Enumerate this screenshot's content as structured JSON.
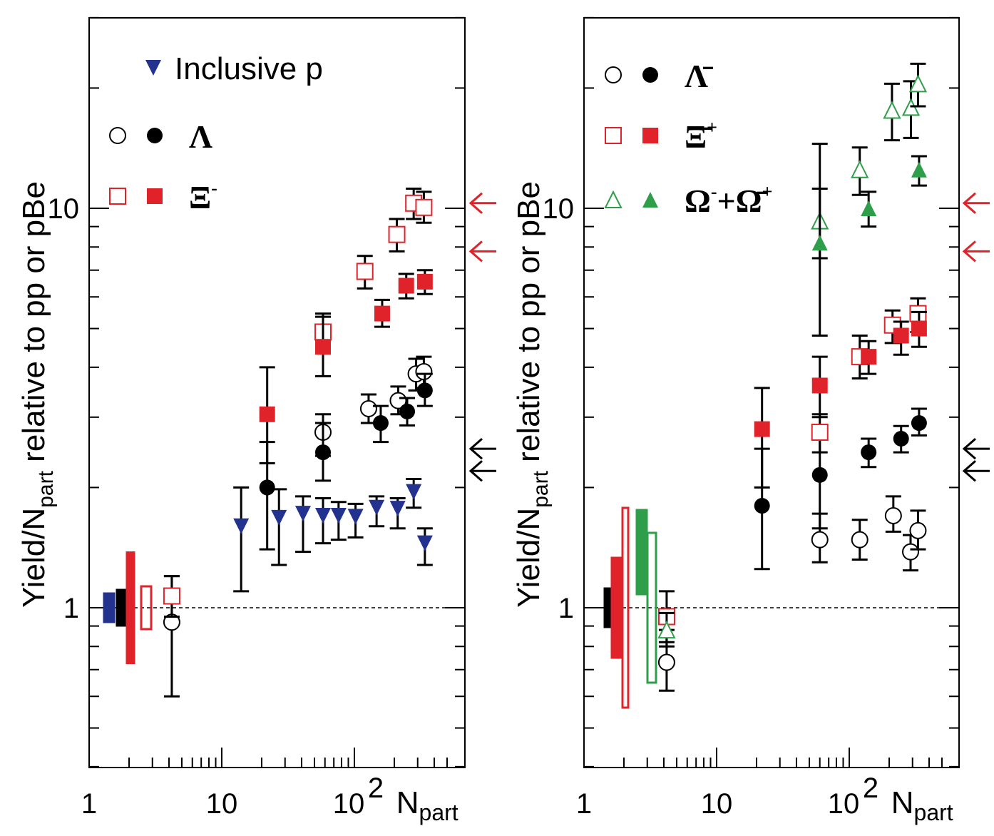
{
  "chart_data": [
    {
      "type": "scatter",
      "panel": "left",
      "ylabel": "Yield/N",
      "ylabel_sub": "part",
      "ylabel_rest": " relative to pp or pBe",
      "xlabel": "N",
      "xlabel_sub": "part",
      "xscale": "log",
      "yscale": "log",
      "xlim": [
        1,
        500
      ],
      "ylim": [
        0.4,
        30
      ],
      "x_tick_labels": [
        "1",
        "10",
        "10",
        "2"
      ],
      "y_tick_labels": [
        "1",
        "10"
      ],
      "legend": [
        {
          "label": "Inclusive p",
          "markers": [
            "triangle-down-filled"
          ],
          "color": "#23318f"
        },
        {
          "label": "Λ",
          "markers": [
            "circle-open",
            "circle-filled"
          ],
          "color": "#000000"
        },
        {
          "label": "Ξ",
          "superscript": "-",
          "markers": [
            "square-open",
            "square-filled"
          ],
          "color": "#e0232a"
        }
      ],
      "series": [
        {
          "name": "Inclusive p",
          "marker": "triangle-down-filled",
          "color": "#23318f",
          "points": [
            [
              14,
              1.6,
              1.1,
              2.0
            ],
            [
              27,
              1.68,
              1.28,
              1.98
            ],
            [
              41,
              1.72,
              1.38,
              1.9
            ],
            [
              58,
              1.7,
              1.45,
              1.88
            ],
            [
              76,
              1.7,
              1.48,
              1.84
            ],
            [
              102,
              1.69,
              1.5,
              1.82
            ],
            [
              147,
              1.78,
              1.6,
              1.9
            ],
            [
              212,
              1.77,
              1.58,
              1.88
            ],
            [
              280,
              1.95,
              1.78,
              2.1
            ],
            [
              340,
              1.45,
              1.28,
              1.58
            ]
          ]
        },
        {
          "name": "Λ (open)",
          "marker": "circle-open",
          "color": "#000000",
          "points": [
            [
              4.2,
              0.92,
              0.6,
              1.2
            ],
            [
              58,
              2.75,
              2.4,
              3.05
            ],
            [
              128,
              3.15,
              2.9,
              3.42
            ],
            [
              214,
              3.3,
              3.05,
              3.58
            ],
            [
              292,
              3.85,
              3.5,
              4.2
            ],
            [
              334,
              3.9,
              3.55,
              4.25
            ]
          ]
        },
        {
          "name": "Λ (filled)",
          "marker": "circle-filled",
          "color": "#000000",
          "points": [
            [
              22,
              2.0,
              1.4,
              2.6
            ],
            [
              58,
              2.45,
              2.08,
              2.9
            ],
            [
              158,
              2.9,
              2.6,
              3.2
            ],
            [
              250,
              3.1,
              2.86,
              3.35
            ],
            [
              340,
              3.5,
              3.2,
              3.85
            ]
          ]
        },
        {
          "name": "Ξ- (open)",
          "marker": "square-open",
          "color": "#e0232a",
          "points": [
            [
              4.2,
              1.07,
              0.95,
              1.2
            ],
            [
              58,
              4.9,
              4.4,
              5.45
            ],
            [
              120,
              6.95,
              6.3,
              7.6
            ],
            [
              209,
              8.6,
              7.8,
              9.4
            ],
            [
              280,
              10.3,
              9.4,
              11.2
            ],
            [
              334,
              10.05,
              9.2,
              11.0
            ]
          ]
        },
        {
          "name": "Ξ- (filled)",
          "marker": "square-filled",
          "color": "#e0232a",
          "points": [
            [
              22,
              3.05,
              2.3,
              4.0
            ],
            [
              58,
              4.5,
              3.8,
              5.35
            ],
            [
              162,
              5.45,
              5.05,
              5.9
            ],
            [
              246,
              6.4,
              5.95,
              6.85
            ],
            [
              340,
              6.55,
              6.1,
              7.0
            ]
          ]
        }
      ],
      "reference_line": 1,
      "pp_normalization_boxes": [
        "#23318f",
        "#000000",
        "#e0232a",
        "#e0232a"
      ],
      "arrows": [
        {
          "color": "#e0232a",
          "y": 10.3
        },
        {
          "color": "#e0232a",
          "y": 7.8
        },
        {
          "color": "#000000",
          "y": 2.5
        },
        {
          "color": "#000000",
          "y": 2.2
        }
      ]
    },
    {
      "type": "scatter",
      "panel": "right",
      "ylabel": "Yield/N",
      "ylabel_sub": "part",
      "ylabel_rest": " relative to pp or pBe",
      "xlabel": "N",
      "xlabel_sub": "part",
      "xscale": "log",
      "yscale": "log",
      "xlim": [
        1,
        500
      ],
      "ylim": [
        0.4,
        30
      ],
      "x_tick_labels": [
        "1",
        "10",
        "10",
        "2"
      ],
      "y_tick_labels": [
        "1",
        "10"
      ],
      "legend": [
        {
          "label": "Λ̄",
          "markers": [
            "circle-open",
            "circle-filled"
          ],
          "color": "#000000"
        },
        {
          "label": "Ξ̄",
          "superscript": "+",
          "markers": [
            "square-open",
            "square-filled"
          ],
          "color": "#e0232a"
        },
        {
          "label": "Ω",
          "superscript": "-",
          "label2": "+Ω̄",
          "superscript2": "+",
          "markers": [
            "triangle-up-open",
            "triangle-up-filled"
          ],
          "color": "#2f9e4a"
        }
      ],
      "series": [
        {
          "name": "Λ̄ (open)",
          "marker": "circle-open",
          "color": "#000000",
          "points": [
            [
              4.2,
              0.73,
              0.62,
              0.88
            ],
            [
              60,
              1.48,
              1.3,
              1.72
            ],
            [
              120,
              1.48,
              1.32,
              1.66
            ],
            [
              215,
              1.7,
              1.55,
              1.9
            ],
            [
              290,
              1.38,
              1.24,
              1.52
            ],
            [
              330,
              1.56,
              1.4,
              1.75
            ]
          ]
        },
        {
          "name": "Λ̄ (filled)",
          "marker": "circle-filled",
          "color": "#000000",
          "points": [
            [
              22,
              1.8,
              1.25,
              2.5
            ],
            [
              60,
              2.15,
              1.58,
              2.75
            ],
            [
              140,
              2.45,
              2.25,
              2.65
            ],
            [
              246,
              2.65,
              2.45,
              2.85
            ],
            [
              336,
              2.9,
              2.7,
              3.15
            ]
          ]
        },
        {
          "name": "Ξ̄+ (open)",
          "marker": "square-open",
          "color": "#e0232a",
          "points": [
            [
              4.2,
              0.95,
              0.82,
              1.1
            ],
            [
              60,
              2.75,
              2.45,
              3.05
            ],
            [
              120,
              4.25,
              3.75,
              4.8
            ],
            [
              212,
              5.1,
              4.6,
              5.55
            ],
            [
              330,
              5.45,
              4.9,
              5.95
            ]
          ]
        },
        {
          "name": "Ξ̄+ (filled)",
          "marker": "square-filled",
          "color": "#e0232a",
          "points": [
            [
              22,
              2.8,
              2.0,
              3.55
            ],
            [
              60,
              3.6,
              3.0,
              4.25
            ],
            [
              140,
              4.25,
              3.85,
              4.65
            ],
            [
              246,
              4.8,
              4.3,
              5.2
            ],
            [
              336,
              5.0,
              4.5,
              5.5
            ]
          ]
        },
        {
          "name": "Ω (open)",
          "marker": "triangle-up-open",
          "color": "#2f9e4a",
          "points": [
            [
              4.2,
              0.88,
              0.8,
              0.97
            ],
            [
              60,
              9.3,
              7.5,
              11.2
            ],
            [
              120,
              12.5,
              10.8,
              14.2
            ],
            [
              210,
              17.6,
              14.8,
              20.5
            ],
            [
              292,
              17.9,
              15.0,
              20.8
            ],
            [
              330,
              20.5,
              18.0,
              23.0
            ]
          ]
        },
        {
          "name": "Ω (filled)",
          "marker": "triangle-up-filled",
          "color": "#2f9e4a",
          "points": [
            [
              60,
              8.2,
              4.8,
              14.5
            ],
            [
              140,
              10.0,
              9.0,
              11.0
            ],
            [
              336,
              12.5,
              11.4,
              13.5
            ]
          ]
        }
      ],
      "reference_line": 1,
      "pp_normalization_boxes": [
        "#000000",
        "#e0232a",
        "#e0232a",
        "#2f9e4a",
        "#2f9e4a"
      ],
      "arrows": [
        {
          "color": "#e0232a",
          "y": 10.3
        },
        {
          "color": "#e0232a",
          "y": 7.8
        },
        {
          "color": "#000000",
          "y": 2.5
        },
        {
          "color": "#000000",
          "y": 2.2
        }
      ]
    }
  ]
}
